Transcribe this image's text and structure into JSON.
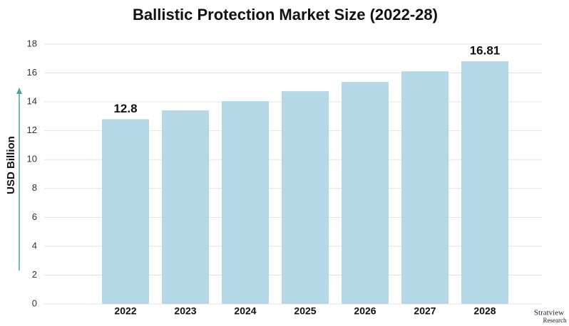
{
  "chart_data": {
    "type": "bar",
    "title": "Ballistic Protection Market Size (2022-28)",
    "y_label": "USD Billion",
    "categories": [
      "2022",
      "2023",
      "2024",
      "2025",
      "2026",
      "2027",
      "2028"
    ],
    "values": [
      12.8,
      13.41,
      14.05,
      14.74,
      15.38,
      16.12,
      16.81
    ],
    "value_labels": [
      "12.8",
      null,
      null,
      null,
      null,
      null,
      "16.81"
    ],
    "color": "#b5d8e6",
    "ylim": [
      0,
      18
    ],
    "yticks": [
      0,
      2,
      4,
      6,
      8,
      10,
      12,
      14,
      16,
      18
    ],
    "grid": true
  },
  "logo": {
    "name": "Stratview",
    "sub": "Research"
  }
}
